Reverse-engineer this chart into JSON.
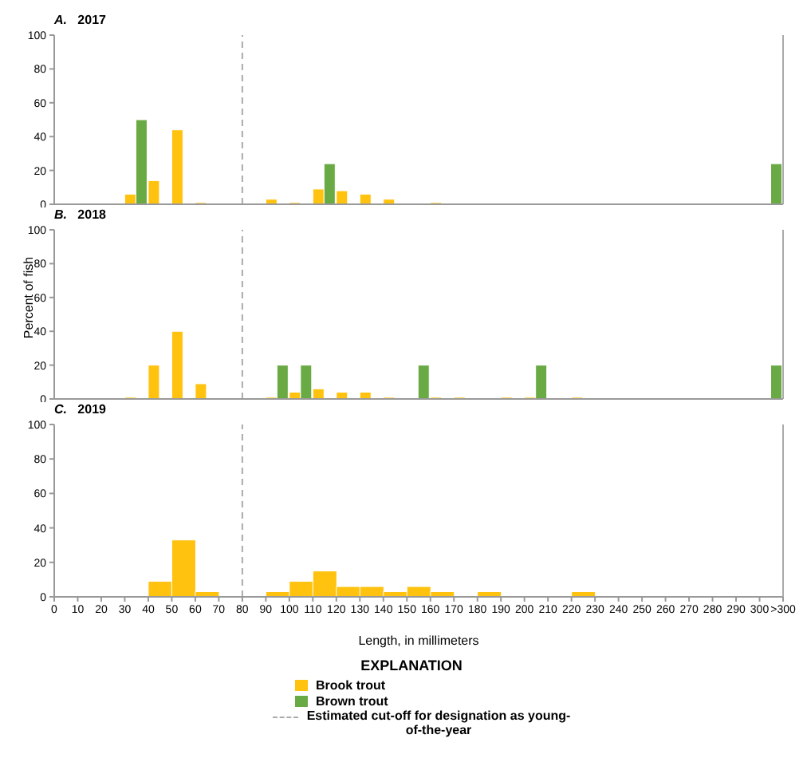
{
  "chart_data": [
    {
      "type": "histogram",
      "title": "A. 2017",
      "bins": [
        0,
        10,
        20,
        30,
        40,
        50,
        60,
        70,
        80,
        90,
        100,
        110,
        120,
        130,
        140,
        150,
        160,
        170,
        180,
        190,
        200,
        210,
        220,
        230,
        240,
        250,
        260,
        270,
        280,
        290,
        300,
        310
      ],
      "series": [
        {
          "name": "Brook trout",
          "color": "#ffc20e",
          "values": [
            0,
            0,
            0,
            6,
            14,
            44,
            1,
            0,
            0,
            3,
            1,
            9,
            8,
            6,
            3,
            0,
            1,
            0,
            0,
            0,
            0,
            0,
            0,
            0,
            0,
            0,
            0,
            0,
            0,
            0,
            0
          ]
        },
        {
          "name": "Brown trout",
          "color": "#6aaa45",
          "values": [
            0,
            0,
            0,
            50,
            0,
            0,
            0,
            0,
            0,
            0,
            0,
            24,
            0,
            0,
            0,
            0,
            0,
            0,
            0,
            0,
            0,
            0,
            0,
            0,
            0,
            0,
            0,
            0,
            0,
            0,
            24
          ]
        }
      ],
      "xlim": [
        0,
        310
      ],
      "ylim": [
        0,
        100
      ],
      "yticks": [
        0,
        20,
        40,
        60,
        80,
        100
      ],
      "tick_labels": "y",
      "ref_lines": [
        {
          "axis": "x",
          "value": 80,
          "label": "Estimated cut-off for designation as young-of-the-year",
          "color": "#aaaaaa",
          "line_style": "dashed"
        }
      ],
      "legend": "bottom",
      "legend_title": "EXPLANATION"
    },
    {
      "type": "histogram",
      "title": "B. 2018",
      "ylabel": "Percent of fish",
      "bins": [
        0,
        10,
        20,
        30,
        40,
        50,
        60,
        70,
        80,
        90,
        100,
        110,
        120,
        130,
        140,
        150,
        160,
        170,
        180,
        190,
        200,
        210,
        220,
        230,
        240,
        250,
        260,
        270,
        280,
        290,
        300,
        310
      ],
      "series": [
        {
          "color": "#ffc20e",
          "values": [
            0,
            0,
            0,
            1,
            20,
            40,
            9,
            0,
            0,
            1,
            4,
            6,
            4,
            4,
            1,
            0,
            1,
            1,
            0,
            1,
            1,
            0,
            1,
            0,
            0,
            0,
            0,
            0,
            0,
            0,
            0
          ]
        },
        {
          "color": "#6aaa45",
          "values": [
            0,
            0,
            0,
            0,
            0,
            0,
            0,
            0,
            0,
            20,
            20,
            0,
            0,
            0,
            0,
            20,
            0,
            0,
            0,
            0,
            20,
            0,
            0,
            0,
            0,
            0,
            0,
            0,
            0,
            0,
            20
          ]
        }
      ],
      "xlim": [
        0,
        310
      ],
      "ylim": [
        0,
        100
      ],
      "yticks": [
        0,
        20,
        40,
        60,
        80,
        100
      ],
      "tick_labels": "y",
      "ref_lines": [
        {
          "axis": "x",
          "value": 80,
          "color": "#aaaaaa",
          "line_style": "dashed"
        }
      ]
    },
    {
      "type": "histogram",
      "title": "C. 2019",
      "xlabel": "Length, in millimeters",
      "bins": [
        0,
        10,
        20,
        30,
        40,
        50,
        60,
        70,
        80,
        90,
        100,
        110,
        120,
        130,
        140,
        150,
        160,
        170,
        180,
        190,
        200,
        210,
        220,
        230,
        240,
        250,
        260,
        270,
        280,
        290,
        300,
        310
      ],
      "series": [
        {
          "color": "#ffc20e",
          "values": [
            0,
            0,
            0,
            0,
            9,
            33,
            3,
            0,
            0,
            3,
            9,
            15,
            6,
            6,
            3,
            6,
            3,
            0,
            3,
            0,
            0,
            0,
            3,
            0,
            0,
            0,
            0,
            0,
            0,
            0,
            0
          ]
        }
      ],
      "xlim": [
        0,
        310
      ],
      "xticks": [
        0,
        10,
        20,
        30,
        40,
        50,
        60,
        70,
        80,
        90,
        100,
        110,
        120,
        130,
        140,
        150,
        160,
        170,
        180,
        190,
        200,
        210,
        220,
        230,
        240,
        250,
        260,
        270,
        280,
        290,
        300,
        {
          "value": 310,
          "label": ">300"
        }
      ],
      "ylim": [
        0,
        100
      ],
      "yticks": [
        0,
        20,
        40,
        60,
        80,
        100
      ],
      "ref_lines": [
        {
          "axis": "x",
          "value": 80,
          "color": "#aaaaaa",
          "line_style": "dashed"
        }
      ]
    }
  ]
}
